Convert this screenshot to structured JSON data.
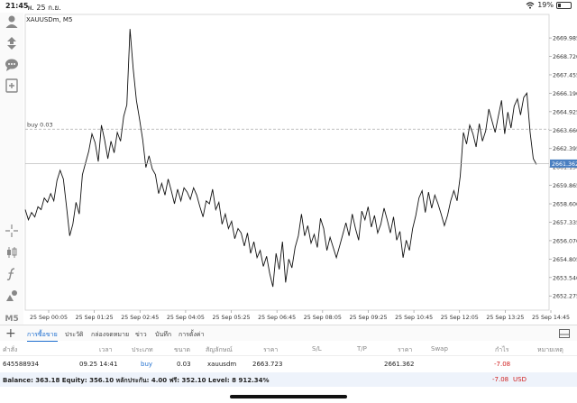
{
  "status_bar": {
    "time": "21:45",
    "date": "พ. 25 ก.ย.",
    "battery": "19%",
    "battery_level": 0.19
  },
  "chart": {
    "symbol_label": "XAUUSDm, M5",
    "buy_line_label": "buy 0.03",
    "current_price": "2661.362",
    "price_labels": [
      "2669.985",
      "2668.720",
      "2667.455",
      "2666.190",
      "2664.925",
      "2663.660",
      "2662.395",
      "2661.130",
      "2659.865",
      "2658.600",
      "2657.335",
      "2656.070",
      "2654.805",
      "2653.540",
      "2652.275"
    ],
    "time_labels": [
      "25 Sep 00:05",
      "25 Sep 01:25",
      "25 Sep 02:45",
      "25 Sep 04:05",
      "25 Sep 05:25",
      "25 Sep 06:45",
      "25 Sep 08:05",
      "25 Sep 09:25",
      "25 Sep 10:45",
      "25 Sep 12:05",
      "25 Sep 13:25",
      "25 Sep 14:45"
    ]
  },
  "chart_data": {
    "type": "line",
    "title": "XAUUSDm, M5",
    "ylim": [
      2651.3,
      2671.6
    ],
    "yticks": [
      2669.985,
      2668.72,
      2667.455,
      2666.19,
      2664.925,
      2663.66,
      2662.395,
      2661.13,
      2659.865,
      2658.6,
      2657.335,
      2656.07,
      2654.805,
      2653.54,
      2652.275
    ],
    "buy_price": 2663.723,
    "current_price": 2661.362,
    "x_start": "25 Sep 00:05",
    "x_end": "25 Sep 14:45",
    "values": [
      2658.2,
      2657.5,
      2658.0,
      2657.7,
      2658.4,
      2658.2,
      2659.0,
      2658.7,
      2659.3,
      2658.8,
      2660.2,
      2660.9,
      2660.3,
      2658.4,
      2656.4,
      2657.2,
      2658.7,
      2657.9,
      2660.6,
      2661.4,
      2662.2,
      2663.4,
      2662.8,
      2661.5,
      2664.0,
      2663.0,
      2661.7,
      2662.9,
      2662.1,
      2663.5,
      2662.9,
      2664.6,
      2665.4,
      2670.6,
      2667.9,
      2665.7,
      2664.4,
      2663.0,
      2661.1,
      2661.9,
      2661.0,
      2660.6,
      2659.3,
      2660.0,
      2659.2,
      2660.3,
      2659.5,
      2658.6,
      2659.6,
      2658.8,
      2659.7,
      2659.4,
      2658.9,
      2659.7,
      2659.2,
      2658.4,
      2657.7,
      2658.8,
      2658.6,
      2659.6,
      2658.2,
      2658.7,
      2657.2,
      2657.9,
      2656.9,
      2657.4,
      2656.2,
      2656.9,
      2656.6,
      2655.7,
      2656.6,
      2655.2,
      2656.0,
      2654.9,
      2655.4,
      2654.3,
      2655.0,
      2653.8,
      2652.9,
      2655.2,
      2654.1,
      2656.0,
      2653.2,
      2654.8,
      2654.2,
      2655.6,
      2656.4,
      2657.9,
      2656.4,
      2657.1,
      2655.9,
      2656.5,
      2655.6,
      2657.6,
      2656.9,
      2655.4,
      2656.3,
      2655.6,
      2654.9,
      2655.7,
      2656.5,
      2657.3,
      2656.4,
      2657.9,
      2656.9,
      2656.1,
      2658.1,
      2657.5,
      2658.4,
      2657.0,
      2657.8,
      2656.6,
      2657.2,
      2658.3,
      2657.5,
      2656.6,
      2657.7,
      2656.1,
      2656.7,
      2654.9,
      2656.1,
      2655.4,
      2656.9,
      2657.8,
      2659.0,
      2659.5,
      2658.0,
      2659.4,
      2658.3,
      2659.2,
      2658.6,
      2657.9,
      2657.1,
      2657.8,
      2658.8,
      2659.5,
      2658.8,
      2660.5,
      2663.5,
      2662.7,
      2664.0,
      2663.4,
      2662.5,
      2664.1,
      2662.9,
      2663.6,
      2665.1,
      2664.3,
      2663.5,
      2664.6,
      2665.7,
      2663.4,
      2664.9,
      2663.8,
      2665.3,
      2665.8,
      2664.7,
      2665.9,
      2666.2,
      2663.5,
      2661.7,
      2661.3
    ]
  },
  "bottom_toolbar": {
    "tabs": [
      "การซื้อขาย",
      "ประวัติ",
      "กล่องจดหมาย",
      "ข่าว",
      "บันทึก",
      "การตั้งค่า"
    ]
  },
  "positions_table": {
    "headers": [
      "คำสั่ง",
      "เวลา",
      "ประเภท",
      "ขนาด",
      "สัญลักษณ์",
      "ราคา",
      "S/L",
      "T/P",
      "ราคา",
      "Swap",
      "กำไร",
      "หมายเหตุ"
    ],
    "row": {
      "order": "645588934",
      "time": "09.25 14:41",
      "type": "buy",
      "volume": "0.03",
      "symbol": "xauusdm",
      "open_price": "2663.723",
      "current_price": "2661.362",
      "profit": "-7.08"
    }
  },
  "balance_bar": {
    "summary": "Balance: 363.18 Equity: 356.10 หลักประกัน: 4.00 ฟรี: 352.10 Level: 8 912.34%",
    "total_profit": "-7.08",
    "currency": "USD"
  },
  "colors": {
    "accent": "#1f6fd0",
    "loss": "#d02020",
    "line": "#111111"
  },
  "icons": [
    "user-icon",
    "trade-icon",
    "chat-icon",
    "add-chart-icon",
    "crosshair-icon",
    "chart-type-icon",
    "indicator-icon",
    "objects-icon",
    "timeframe-icon",
    "plus-icon",
    "panel-icon",
    "wifi-icon",
    "battery-icon"
  ]
}
